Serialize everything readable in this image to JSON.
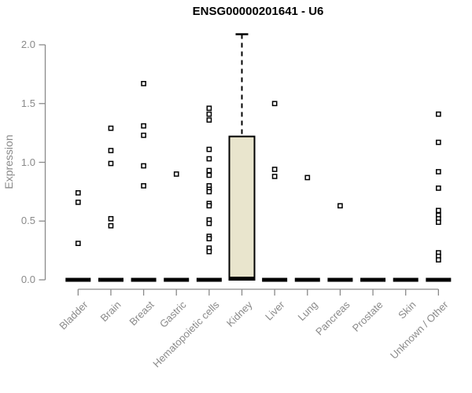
{
  "title": "ENSG00000201641 - U6",
  "chart_data": {
    "type": "boxplot",
    "title": "ENSG00000201641 - U6",
    "xlabel": "",
    "ylabel": "Expression",
    "ylim": [
      0.0,
      2.0
    ],
    "yticks": [
      0.0,
      0.5,
      1.0,
      1.5,
      2.0
    ],
    "ytick_labels": [
      "0.0",
      "0.5",
      "1.0",
      "1.5",
      "2.0"
    ],
    "grid": false,
    "legend": "none",
    "categories": [
      "Bladder",
      "Brain",
      "Breast",
      "Gastric",
      "Hematopoietic cells",
      "Kidney",
      "Liver",
      "Lung",
      "Pancreas",
      "Prostate",
      "Skin",
      "Unknown / Other"
    ],
    "boxes": [
      {
        "category": "Bladder",
        "q1": 0,
        "median": 0,
        "q3": 0,
        "whisker_low": 0,
        "whisker_high": 0,
        "outliers": [
          0.74,
          0.66,
          0.31
        ]
      },
      {
        "category": "Brain",
        "q1": 0,
        "median": 0,
        "q3": 0,
        "whisker_low": 0,
        "whisker_high": 0,
        "outliers": [
          1.29,
          1.1,
          0.99,
          0.52,
          0.46
        ]
      },
      {
        "category": "Breast",
        "q1": 0,
        "median": 0,
        "q3": 0,
        "whisker_low": 0,
        "whisker_high": 0,
        "outliers": [
          1.67,
          1.31,
          1.23,
          0.97,
          0.8
        ]
      },
      {
        "category": "Gastric",
        "q1": 0,
        "median": 0,
        "q3": 0,
        "whisker_low": 0,
        "whisker_high": 0,
        "outliers": [
          0.9
        ]
      },
      {
        "category": "Hematopoietic cells",
        "q1": 0,
        "median": 0,
        "q3": 0,
        "whisker_low": 0,
        "whisker_high": 0,
        "outliers": [
          1.46,
          1.41,
          1.36,
          1.11,
          1.03,
          0.93,
          0.89,
          0.8,
          0.77,
          0.75,
          0.65,
          0.63,
          0.51,
          0.48,
          0.37,
          0.35,
          0.27,
          0.24
        ]
      },
      {
        "category": "Kidney",
        "q1": 0,
        "median": 0.01,
        "q3": 1.22,
        "whisker_low": 0,
        "whisker_high": 2.09,
        "outliers": []
      },
      {
        "category": "Liver",
        "q1": 0,
        "median": 0,
        "q3": 0,
        "whisker_low": 0,
        "whisker_high": 0,
        "outliers": [
          1.5,
          0.94,
          0.88
        ]
      },
      {
        "category": "Lung",
        "q1": 0,
        "median": 0,
        "q3": 0,
        "whisker_low": 0,
        "whisker_high": 0,
        "outliers": [
          0.87
        ]
      },
      {
        "category": "Pancreas",
        "q1": 0,
        "median": 0,
        "q3": 0,
        "whisker_low": 0,
        "whisker_high": 0,
        "outliers": [
          0.63
        ]
      },
      {
        "category": "Prostate",
        "q1": 0,
        "median": 0,
        "q3": 0,
        "whisker_low": 0,
        "whisker_high": 0,
        "outliers": []
      },
      {
        "category": "Skin",
        "q1": 0,
        "median": 0,
        "q3": 0,
        "whisker_low": 0,
        "whisker_high": 0,
        "outliers": []
      },
      {
        "category": "Unknown / Other",
        "q1": 0,
        "median": 0,
        "q3": 0,
        "whisker_low": 0,
        "whisker_high": 0,
        "outliers": [
          1.41,
          1.17,
          0.92,
          0.78,
          0.59,
          0.55,
          0.52,
          0.49,
          0.23,
          0.2,
          0.17
        ]
      }
    ],
    "colors": {
      "box_fill": "#E9E5CD",
      "box_border": "#000000",
      "median": "#000000",
      "whisker": "#000000",
      "outlier_stroke": "#000000",
      "outlier_fill": "#FFFFFF",
      "axis": "#8a8a8a",
      "tick_text": "#8a8a8a",
      "title_text": "#000000",
      "background": "#FFFFFF"
    }
  }
}
